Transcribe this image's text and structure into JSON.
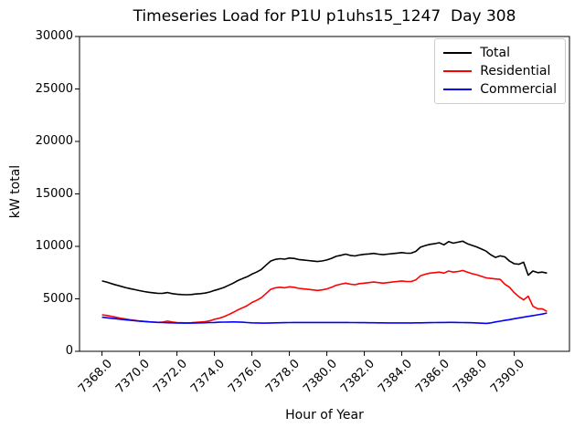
{
  "figure": {
    "background": "#ffffff"
  },
  "title": "Timeseries Load for P1U p1uhs15_1247  Day 308",
  "legend": {
    "entries": [
      {
        "label": "Total",
        "color": "#000000"
      },
      {
        "label": "Residential",
        "color": "#ff0000"
      },
      {
        "label": "Commercial",
        "color": "#0000ff"
      }
    ]
  },
  "chart_data": {
    "type": "line",
    "title": "Timeseries Load for P1U p1uhs15_1247  Day 308",
    "xlabel": "Hour of Year",
    "ylabel": "kW total",
    "xlim": [
      7366.8,
      7392.95
    ],
    "ylim": [
      0,
      30000
    ],
    "grid": false,
    "legend_position": "upper right",
    "xticks": [
      7368,
      7370,
      7372,
      7374,
      7376,
      7378,
      7380,
      7382,
      7384,
      7386,
      7388,
      7390
    ],
    "xtick_labels": [
      "7368.0",
      "7370.0",
      "7372.0",
      "7374.0",
      "7376.0",
      "7378.0",
      "7380.0",
      "7382.0",
      "7384.0",
      "7386.0",
      "7388.0",
      "7390.0"
    ],
    "yticks": [
      0,
      5000,
      10000,
      15000,
      20000,
      25000,
      30000
    ],
    "ytick_labels": [
      "0",
      "5000",
      "10000",
      "15000",
      "20000",
      "25000",
      "30000"
    ],
    "x": [
      7368.0,
      7368.25,
      7368.5,
      7368.75,
      7369.0,
      7369.25,
      7369.5,
      7369.75,
      7370.0,
      7370.25,
      7370.5,
      7370.75,
      7371.0,
      7371.25,
      7371.5,
      7371.75,
      7372.0,
      7372.25,
      7372.5,
      7372.75,
      7373.0,
      7373.25,
      7373.5,
      7373.75,
      7374.0,
      7374.25,
      7374.5,
      7374.75,
      7375.0,
      7375.25,
      7375.5,
      7375.75,
      7376.0,
      7376.25,
      7376.5,
      7376.75,
      7377.0,
      7377.25,
      7377.5,
      7377.75,
      7378.0,
      7378.25,
      7378.5,
      7378.75,
      7379.0,
      7379.25,
      7379.5,
      7379.75,
      7380.0,
      7380.25,
      7380.5,
      7380.75,
      7381.0,
      7381.25,
      7381.5,
      7381.75,
      7382.0,
      7382.25,
      7382.5,
      7382.75,
      7383.0,
      7383.25,
      7383.5,
      7383.75,
      7384.0,
      7384.25,
      7384.5,
      7384.75,
      7385.0,
      7385.25,
      7385.5,
      7385.75,
      7386.0,
      7386.25,
      7386.5,
      7386.75,
      7387.0,
      7387.25,
      7387.5,
      7387.75,
      7388.0,
      7388.25,
      7388.5,
      7388.75,
      7389.0,
      7389.25,
      7389.5,
      7389.75,
      7390.0,
      7390.25,
      7390.5,
      7390.75,
      7391.0,
      7391.25,
      7391.5,
      7391.75
    ],
    "series": [
      {
        "name": "Total",
        "color": "#000000",
        "values": [
          6700,
          6600,
          6450,
          6320,
          6200,
          6080,
          5970,
          5880,
          5780,
          5700,
          5630,
          5570,
          5520,
          5530,
          5600,
          5500,
          5440,
          5410,
          5390,
          5410,
          5460,
          5500,
          5550,
          5650,
          5800,
          5930,
          6080,
          6290,
          6500,
          6740,
          6930,
          7100,
          7360,
          7550,
          7790,
          8200,
          8600,
          8760,
          8830,
          8780,
          8890,
          8850,
          8750,
          8700,
          8650,
          8600,
          8560,
          8610,
          8700,
          8860,
          9050,
          9150,
          9260,
          9140,
          9090,
          9180,
          9240,
          9280,
          9330,
          9260,
          9210,
          9260,
          9310,
          9360,
          9410,
          9350,
          9360,
          9520,
          9920,
          10080,
          10190,
          10250,
          10350,
          10150,
          10450,
          10300,
          10400,
          10500,
          10250,
          10100,
          9950,
          9750,
          9550,
          9200,
          8950,
          9100,
          9000,
          8600,
          8350,
          8300,
          8500,
          7250,
          7650,
          7500,
          7550,
          7450
        ]
      },
      {
        "name": "Residential",
        "color": "#ff0000",
        "values": [
          3480,
          3420,
          3330,
          3240,
          3150,
          3080,
          3010,
          2950,
          2890,
          2850,
          2810,
          2780,
          2760,
          2790,
          2880,
          2790,
          2740,
          2720,
          2700,
          2720,
          2760,
          2790,
          2830,
          2900,
          3050,
          3150,
          3300,
          3500,
          3700,
          3950,
          4150,
          4350,
          4650,
          4850,
          5100,
          5500,
          5900,
          6050,
          6100,
          6050,
          6150,
          6100,
          6000,
          5950,
          5900,
          5850,
          5800,
          5850,
          5950,
          6100,
          6300,
          6400,
          6500,
          6400,
          6350,
          6450,
          6500,
          6550,
          6600,
          6550,
          6500,
          6550,
          6600,
          6650,
          6700,
          6650,
          6650,
          6800,
          7200,
          7350,
          7450,
          7500,
          7550,
          7450,
          7650,
          7550,
          7600,
          7700,
          7550,
          7400,
          7300,
          7150,
          7000,
          6950,
          6900,
          6850,
          6400,
          6100,
          5600,
          5200,
          4900,
          5250,
          4300,
          4050,
          4050,
          3800
        ]
      },
      {
        "name": "Commercial",
        "color": "#0000ff",
        "values": [
          3250,
          3200,
          3150,
          3100,
          3050,
          3000,
          2960,
          2920,
          2880,
          2840,
          2810,
          2780,
          2760,
          2740,
          2720,
          2710,
          2700,
          2690,
          2690,
          2690,
          2700,
          2710,
          2720,
          2740,
          2750,
          2770,
          2780,
          2790,
          2800,
          2790,
          2770,
          2740,
          2710,
          2700,
          2690,
          2690,
          2700,
          2710,
          2720,
          2730,
          2740,
          2750,
          2750,
          2750,
          2750,
          2750,
          2750,
          2750,
          2750,
          2750,
          2750,
          2750,
          2750,
          2740,
          2740,
          2730,
          2730,
          2720,
          2720,
          2710,
          2710,
          2700,
          2700,
          2700,
          2700,
          2700,
          2700,
          2710,
          2710,
          2720,
          2730,
          2740,
          2750,
          2750,
          2760,
          2760,
          2750,
          2740,
          2730,
          2720,
          2700,
          2680,
          2660,
          2700,
          2800,
          2870,
          2950,
          3020,
          3100,
          3180,
          3250,
          3330,
          3400,
          3480,
          3550,
          3650
        ]
      }
    ]
  }
}
